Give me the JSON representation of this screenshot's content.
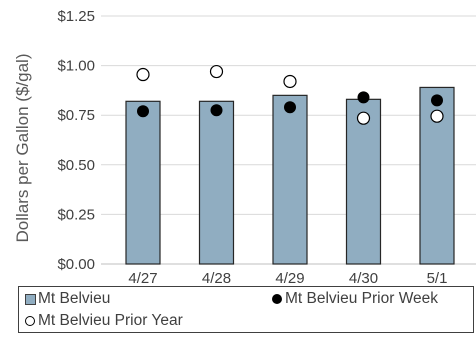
{
  "chart_data": {
    "type": "bar",
    "title": "",
    "xlabel": "",
    "ylabel": "Dollars per Gallon ($/gal)",
    "categories": [
      "4/27",
      "4/28",
      "4/29",
      "4/30",
      "5/1"
    ],
    "ylim": [
      0,
      1.25
    ],
    "y_ticks": [
      "$0.00",
      "$0.25",
      "$0.50",
      "$0.75",
      "$1.00",
      "$1.25"
    ],
    "y_tick_values": [
      0,
      0.25,
      0.5,
      0.75,
      1.0,
      1.25
    ],
    "grid": true,
    "legend_position": "bottom",
    "series": [
      {
        "name": "Mt Belvieu",
        "type": "bar",
        "color": "#90adc1",
        "values": [
          0.82,
          0.82,
          0.85,
          0.83,
          0.89
        ]
      },
      {
        "name": "Mt Belvieu Prior Week",
        "type": "scatter",
        "marker": "filled-circle",
        "color": "#000000",
        "values": [
          0.77,
          0.775,
          0.79,
          0.84,
          0.825
        ]
      },
      {
        "name": "Mt Belvieu Prior Year",
        "type": "scatter",
        "marker": "open-circle",
        "color": "#000000",
        "values": [
          0.955,
          0.97,
          0.92,
          0.735,
          0.745
        ]
      }
    ]
  }
}
